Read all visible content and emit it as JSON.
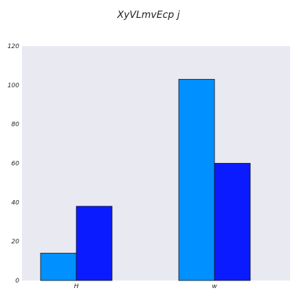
{
  "chart_data": {
    "type": "bar",
    "title": "XyVLmvEcp  j",
    "xlabel": "",
    "ylabel": "",
    "categories": [
      "H",
      "w"
    ],
    "series": [
      {
        "values": [
          14,
          103
        ],
        "color": "#0090ff"
      },
      {
        "values": [
          38,
          60
        ],
        "color": "#0a1cff"
      }
    ],
    "ylim": [
      0,
      120
    ],
    "yticks": [
      0,
      20,
      40,
      60,
      80,
      100,
      120
    ],
    "grid": false,
    "legend": "none",
    "plot_background": "#e9e9f2"
  }
}
